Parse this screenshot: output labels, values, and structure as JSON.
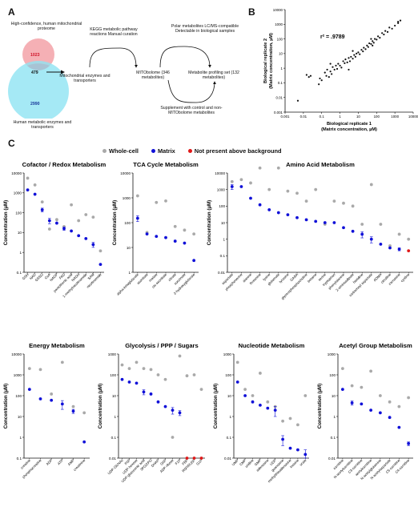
{
  "panel_labels": {
    "a": "A",
    "b": "B",
    "c": "C"
  },
  "panelA": {
    "venn_top_label": "High-confidence, human mitochondrial proteome",
    "venn_bottom_label": "Human metabolic enzymes and transporters",
    "venn_top_count": "1023",
    "venn_overlap_count": "479",
    "venn_bottom_count": "2990",
    "step1": "Mitochondrial enzymes and transporters",
    "step1_top_note": "KEGG metabolic pathway reactions Manual curation",
    "step2": "MITObolome (346 metabolites)",
    "step2_top_note": "Polar metabolites LC/MS-compatible Detectable in biological samples",
    "step3": "Metabolite profiling set (132 metabolites)",
    "step3_bottom_note": "Supplement with control and non-MITObolome metabolites",
    "colors": {
      "pink": "#f4a7ad",
      "cyan": "#8fe3f2",
      "overlap": "#a8c3d4",
      "red_text": "#d0142a"
    }
  },
  "legend": {
    "whole_cell": "Whole-cell",
    "matrix": "Matrix",
    "not_present": "Not present above background",
    "colors": {
      "whole_cell": "#a9a9a9",
      "matrix": "#1010d8",
      "not_present": "#e01818"
    }
  },
  "chart_data": [
    {
      "id": "scatter",
      "type": "scatter",
      "scale": "log",
      "annotation": "r² = .9789",
      "xlabel": "Biological replicate 1 (Matrix concentration, µM)",
      "ylabel": "Biological replicate 2 (Matrix concentration, µM)",
      "xlim": [
        0.001,
        10000
      ],
      "ylim": [
        0.001,
        10000
      ],
      "xticks": [
        "0.001",
        "0.01",
        "0.1",
        "1",
        "10",
        "100",
        "1000",
        "10000"
      ],
      "yticks": [
        "0.001",
        "0.01",
        "0.1",
        "1",
        "10",
        "100",
        "1000",
        "10000"
      ],
      "points": [
        [
          0.005,
          0.006
        ],
        [
          0.015,
          0.35
        ],
        [
          0.02,
          0.25
        ],
        [
          0.025,
          0.3
        ],
        [
          0.07,
          0.08
        ],
        [
          0.08,
          0.2
        ],
        [
          0.1,
          0.15
        ],
        [
          0.15,
          0.5
        ],
        [
          0.18,
          0.3
        ],
        [
          0.2,
          0.8
        ],
        [
          0.25,
          0.25
        ],
        [
          0.3,
          0.6
        ],
        [
          0.35,
          0.4
        ],
        [
          0.4,
          1.2
        ],
        [
          0.5,
          0.8
        ],
        [
          0.6,
          1.5
        ],
        [
          0.7,
          0.9
        ],
        [
          0.8,
          2
        ],
        [
          1,
          1.5
        ],
        [
          1.2,
          1.1
        ],
        [
          1.5,
          3
        ],
        [
          1.8,
          2.2
        ],
        [
          2,
          4
        ],
        [
          2.5,
          2.5
        ],
        [
          3,
          5
        ],
        [
          3.5,
          3
        ],
        [
          4,
          6
        ],
        [
          5,
          4.5
        ],
        [
          6,
          8
        ],
        [
          7,
          6
        ],
        [
          8,
          10
        ],
        [
          10,
          12
        ],
        [
          12,
          9
        ],
        [
          15,
          18
        ],
        [
          18,
          14
        ],
        [
          20,
          25
        ],
        [
          25,
          20
        ],
        [
          30,
          35
        ],
        [
          35,
          28
        ],
        [
          40,
          50
        ],
        [
          50,
          45
        ],
        [
          60,
          70
        ],
        [
          70,
          55
        ],
        [
          80,
          100
        ],
        [
          100,
          90
        ],
        [
          120,
          150
        ],
        [
          150,
          120
        ],
        [
          200,
          250
        ],
        [
          250,
          200
        ],
        [
          300,
          350
        ],
        [
          400,
          300
        ],
        [
          500,
          600
        ],
        [
          700,
          500
        ],
        [
          1000,
          800
        ],
        [
          1500,
          1200
        ],
        [
          2000,
          1800
        ],
        [
          1500,
          1500
        ],
        [
          5,
          15
        ],
        [
          0.3,
          2
        ],
        [
          3,
          0.8
        ],
        [
          50,
          100
        ],
        [
          60,
          35
        ]
      ]
    },
    {
      "id": "cofactor",
      "type": "scatter",
      "title": "Cofactor / Redox Metabolism",
      "ylabel": "Concentration (µM)",
      "ylim": [
        0.1,
        10000
      ],
      "yticks": [
        "0.1",
        "1",
        "10",
        "100",
        "1000",
        "10000"
      ],
      "categories": [
        "GSH",
        "NAD",
        "GSSG",
        "CoA",
        "NADP",
        "FAD",
        "pantothenic acid",
        "NADH",
        "1-methylnicotinamide",
        "SAM",
        "nicotinamide"
      ],
      "whole_cell": [
        5500,
        2500,
        350,
        15,
        45,
        20,
        250,
        40,
        80,
        60,
        1.2
      ],
      "matrix": [
        1400,
        850,
        140,
        40,
        30,
        16,
        12,
        7,
        5,
        2.5,
        0.25
      ],
      "matrix_err": [
        0,
        0,
        30,
        12,
        0,
        3,
        0,
        0,
        0,
        0.7,
        0
      ],
      "absent": [
        false,
        false,
        false,
        false,
        false,
        false,
        false,
        false,
        false,
        false,
        false
      ]
    },
    {
      "id": "tca",
      "type": "scatter",
      "title": "TCA Cycle Metabolism",
      "ylabel": "Concentration (µM)",
      "ylim": [
        1,
        10000
      ],
      "yticks": [
        "1",
        "10",
        "100",
        "1000",
        "10000"
      ],
      "categories": [
        "alpha-ketoglutarate",
        "aconitate",
        "malate",
        "cis-aconitate",
        "citrate",
        "succinate",
        "2-hydroxyglutarate"
      ],
      "whole_cell": [
        1200,
        40,
        650,
        750,
        70,
        50,
        35
      ],
      "matrix": [
        150,
        35,
        28,
        25,
        18,
        15,
        3
      ],
      "matrix_err": [
        40,
        0,
        0,
        0,
        0,
        0,
        0
      ],
      "absent": [
        false,
        false,
        false,
        false,
        false,
        false,
        false
      ]
    },
    {
      "id": "amino",
      "type": "scatter",
      "title": "Amino Acid Metabolism",
      "ylabel": "Concentration (µM)",
      "ylim": [
        0.01,
        10000
      ],
      "yticks": [
        "0.01",
        "0.1",
        "1",
        "10",
        "100",
        "1000",
        "10000"
      ],
      "categories": [
        "aspartate",
        "phosphoserine",
        "alanine",
        "threonine",
        "lysine",
        "glutamate",
        "tyrosine",
        "GABA",
        "glycerophosphocholine",
        "betaine",
        "serine",
        "tryptophan",
        "phenylalanine",
        "2-aminoadipate",
        "histidine",
        "carbamoyl aspartate",
        "ADMA",
        "citrulline",
        "carnosine",
        "cystine"
      ],
      "whole_cell": [
        3000,
        4000,
        2500,
        20000,
        1000,
        20000,
        800,
        600,
        200,
        1000,
        8,
        200,
        150,
        100,
        8,
        2000,
        8,
        0.4,
        2,
        1
      ],
      "matrix": [
        1500,
        1500,
        300,
        120,
        60,
        40,
        30,
        20,
        15,
        12,
        10,
        10,
        5,
        3,
        2,
        1,
        0.5,
        0.3,
        0.25,
        0.2
      ],
      "matrix_err": [
        500,
        0,
        0,
        0,
        0,
        0,
        0,
        0,
        0,
        0,
        0,
        0,
        0,
        0,
        0.8,
        0.4,
        0,
        0,
        0.05,
        0
      ],
      "absent": [
        false,
        false,
        false,
        false,
        false,
        false,
        false,
        false,
        false,
        false,
        false,
        false,
        false,
        false,
        false,
        false,
        false,
        false,
        false,
        true
      ]
    },
    {
      "id": "energy",
      "type": "scatter",
      "title": "Energy Metabolism",
      "ylabel": "Concentration (µM)",
      "ylim": [
        0.1,
        10000
      ],
      "yticks": [
        "0.1",
        "1",
        "10",
        "100",
        "1000",
        "10000"
      ],
      "categories": [
        "creatine",
        "phosphocreatine",
        "ADP",
        "ATP",
        "AMP",
        "creatinine"
      ],
      "whole_cell": [
        2000,
        1800,
        120,
        4000,
        30,
        15
      ],
      "matrix": [
        200,
        70,
        60,
        40,
        18,
        0.6
      ],
      "matrix_err": [
        0,
        0,
        0,
        18,
        4,
        0
      ],
      "absent": [
        false,
        false,
        false,
        false,
        false,
        false
      ]
    },
    {
      "id": "glycolysis",
      "type": "scatter",
      "title": "Glycolysis / PPP / Sugars",
      "ylabel": "Concentration (µM)",
      "ylim": [
        0.01,
        1000
      ],
      "yticks": [
        "0.01",
        "0.1",
        "1",
        "10",
        "100",
        "1000"
      ],
      "categories": [
        "UDP-GlcNAc",
        "F6P",
        "UDP-hexose",
        "UDP-glucuronic acid",
        "3PG/2PG",
        "DHAP",
        "G6P",
        "ADP-ribose",
        "F1P",
        "FBP",
        "R5P/RU5P",
        "G1P"
      ],
      "whole_cell": [
        300,
        200,
        400,
        200,
        180,
        100,
        60,
        0.1,
        800,
        90,
        100,
        20
      ],
      "matrix": [
        60,
        45,
        40,
        15,
        12,
        5,
        3,
        2,
        1.5,
        0.01,
        0.01,
        0.01
      ],
      "matrix_err": [
        0,
        0,
        0,
        4,
        0,
        0,
        0,
        0.7,
        0.4,
        0,
        0,
        0
      ],
      "absent": [
        false,
        false,
        false,
        false,
        false,
        false,
        false,
        false,
        false,
        true,
        true,
        true
      ]
    },
    {
      "id": "nucleotide",
      "type": "scatter",
      "title": "Nucleotide Metabolism",
      "ylabel": "Concentration (µM)",
      "ylim": [
        0.01,
        1000
      ],
      "yticks": [
        "0.01",
        "0.1",
        "1",
        "10",
        "100",
        "1000"
      ],
      "categories": [
        "UMP",
        "CMP",
        "uridine",
        "GMP",
        "adenosine",
        "UDP",
        "guanosine",
        "methylthioadenosine",
        "inosine",
        "urate"
      ],
      "whole_cell": [
        400,
        20,
        10,
        120,
        5,
        3,
        0.6,
        0.8,
        0.4,
        10
      ],
      "matrix": [
        45,
        10,
        5,
        3.5,
        2.5,
        2,
        0.08,
        0.03,
        0.025,
        0.015
      ],
      "matrix_err": [
        0,
        0,
        0,
        0,
        0,
        1,
        0.04,
        0,
        0,
        0.01
      ],
      "absent": [
        false,
        false,
        false,
        false,
        false,
        false,
        false,
        false,
        false,
        false
      ]
    },
    {
      "id": "acetyl",
      "type": "scatter",
      "title": "Acetyl Group Metabolism",
      "ylabel": "Concentration (µM)",
      "ylim": [
        0.01,
        1000
      ],
      "yticks": [
        "0.01",
        "0.1",
        "1",
        "10",
        "100",
        "1000"
      ],
      "categories": [
        "carnitine",
        "N-acetylcarnitine",
        "C3-carnitine",
        "acetylcarnitine",
        "N-acetylglutamine",
        "N-acetylaspartate",
        "C5-carnitine",
        "C4-carnitine"
      ],
      "whole_cell": [
        200,
        30,
        25,
        150,
        10,
        5,
        3,
        8
      ],
      "matrix": [
        20,
        4.5,
        4,
        2,
        1.5,
        0.9,
        0.3,
        0.05
      ],
      "matrix_err": [
        0,
        1,
        0,
        0,
        0,
        0,
        0,
        0.01
      ],
      "absent": [
        false,
        false,
        false,
        false,
        false,
        false,
        false,
        false
      ]
    }
  ]
}
